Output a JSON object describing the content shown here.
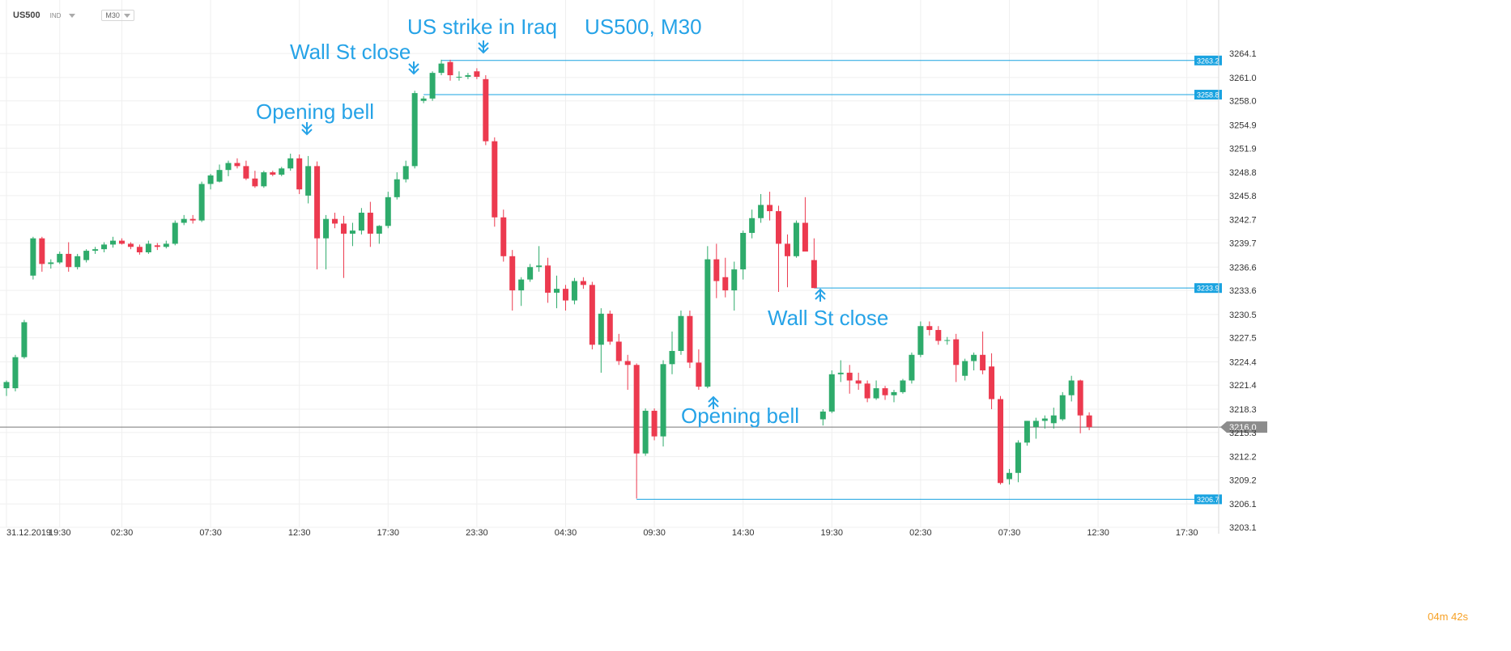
{
  "toolbar": {
    "symbol": "US500",
    "exchange": "IND",
    "timeframe": "M30"
  },
  "timer": {
    "minutes": "04",
    "minute_unit": "m",
    "seconds": "42",
    "second_unit": "s"
  },
  "colors": {
    "up": "#2eab6b",
    "down": "#ec3a4f",
    "level": "#1aa3e0",
    "annotation": "#26a3e7",
    "grid": "#efefef",
    "current": "#777777"
  },
  "chart_data": {
    "type": "candlestick",
    "title": "US500, M30",
    "symbol": "US500",
    "timeframe": "M30",
    "ylim": [
      3203.1,
      3266.3
    ],
    "y_ticks": [
      "3264.1",
      "3261.0",
      "3258.0",
      "3254.9",
      "3251.9",
      "3248.8",
      "3245.8",
      "3242.7",
      "3239.7",
      "3236.6",
      "3233.6",
      "3230.5",
      "3227.5",
      "3224.4",
      "3221.4",
      "3218.3",
      "3215.3",
      "3212.2",
      "3209.2",
      "3206.1",
      "3203.1"
    ],
    "x_ticks": [
      {
        "label": "31.12.2019",
        "i": 0
      },
      {
        "label": "19:30",
        "i": 6
      },
      {
        "label": "02:30",
        "i": 13
      },
      {
        "label": "07:30",
        "i": 23
      },
      {
        "label": "12:30",
        "i": 33
      },
      {
        "label": "17:30",
        "i": 43
      },
      {
        "label": "23:30",
        "i": 53
      },
      {
        "label": "04:30",
        "i": 63
      },
      {
        "label": "09:30",
        "i": 73
      },
      {
        "label": "14:30",
        "i": 83
      },
      {
        "label": "19:30",
        "i": 93
      },
      {
        "label": "02:30",
        "i": 103
      },
      {
        "label": "07:30",
        "i": 113
      },
      {
        "label": "12:30",
        "i": 123
      },
      {
        "label": "17:30",
        "i": 133
      }
    ],
    "candles": [
      [
        3221.0,
        3222.0,
        3220.0,
        3221.8
      ],
      [
        3221.0,
        3225.3,
        3220.6,
        3225.0
      ],
      [
        3225.0,
        3229.8,
        3224.8,
        3229.5
      ],
      [
        3235.5,
        3240.5,
        3235.0,
        3240.3
      ],
      [
        3240.3,
        3240.5,
        3236.0,
        3237.0
      ],
      [
        3237.0,
        3237.6,
        3236.4,
        3237.2
      ],
      [
        3237.2,
        3238.6,
        3237.0,
        3238.3
      ],
      [
        3238.3,
        3239.8,
        3236.0,
        3236.6
      ],
      [
        3236.6,
        3238.3,
        3236.3,
        3238.0
      ],
      [
        3237.5,
        3238.9,
        3237.2,
        3238.7
      ],
      [
        3238.7,
        3239.2,
        3238.3,
        3238.9
      ],
      [
        3238.9,
        3239.8,
        3238.5,
        3239.5
      ],
      [
        3239.5,
        3240.5,
        3239.1,
        3240.0
      ],
      [
        3240.0,
        3240.3,
        3239.5,
        3239.6
      ],
      [
        3239.6,
        3239.8,
        3238.9,
        3239.2
      ],
      [
        3239.2,
        3239.5,
        3238.2,
        3238.5
      ],
      [
        3238.5,
        3240.0,
        3238.3,
        3239.6
      ],
      [
        3239.4,
        3239.7,
        3238.8,
        3239.2
      ],
      [
        3239.2,
        3240.0,
        3239.0,
        3239.6
      ],
      [
        3239.6,
        3242.6,
        3239.4,
        3242.3
      ],
      [
        3242.3,
        3243.3,
        3242.0,
        3242.8
      ],
      [
        3242.8,
        3243.3,
        3242.2,
        3242.6
      ],
      [
        3242.6,
        3247.6,
        3242.4,
        3247.3
      ],
      [
        3247.3,
        3248.6,
        3246.6,
        3248.4
      ],
      [
        3247.6,
        3249.8,
        3247.5,
        3249.1
      ],
      [
        3249.1,
        3250.3,
        3248.3,
        3250.0
      ],
      [
        3250.0,
        3250.6,
        3249.3,
        3249.6
      ],
      [
        3249.6,
        3250.3,
        3247.8,
        3248.0
      ],
      [
        3248.0,
        3249.0,
        3246.8,
        3247.0
      ],
      [
        3247.0,
        3249.0,
        3246.8,
        3248.8
      ],
      [
        3248.8,
        3249.0,
        3248.3,
        3248.5
      ],
      [
        3248.5,
        3249.5,
        3248.3,
        3249.3
      ],
      [
        3249.3,
        3251.2,
        3249.0,
        3250.6
      ],
      [
        3250.6,
        3251.1,
        3246.0,
        3246.6
      ],
      [
        3245.8,
        3250.9,
        3244.8,
        3249.6
      ],
      [
        3249.6,
        3250.2,
        3236.3,
        3240.3
      ],
      [
        3240.3,
        3243.3,
        3236.3,
        3242.8
      ],
      [
        3242.8,
        3243.6,
        3241.6,
        3242.2
      ],
      [
        3242.2,
        3243.2,
        3235.2,
        3240.9
      ],
      [
        3240.9,
        3242.3,
        3239.3,
        3241.3
      ],
      [
        3241.3,
        3244.2,
        3240.8,
        3243.6
      ],
      [
        3243.6,
        3245.0,
        3239.2,
        3240.9
      ],
      [
        3240.9,
        3242.0,
        3239.6,
        3241.9
      ],
      [
        3241.9,
        3246.3,
        3241.6,
        3245.6
      ],
      [
        3245.6,
        3248.8,
        3245.3,
        3247.9
      ],
      [
        3247.9,
        3250.3,
        3247.5,
        3249.6
      ],
      [
        3249.6,
        3259.3,
        3249.3,
        3259.0
      ],
      [
        3258.0,
        3258.6,
        3257.7,
        3258.3
      ],
      [
        3258.3,
        3261.8,
        3258.0,
        3261.6
      ],
      [
        3261.6,
        3263.3,
        3261.3,
        3262.8
      ],
      [
        3263.0,
        3263.3,
        3260.6,
        3261.3
      ],
      [
        3261.1,
        3261.8,
        3260.6,
        3261.1
      ],
      [
        3261.1,
        3261.6,
        3260.8,
        3261.3
      ],
      [
        3261.8,
        3262.2,
        3260.8,
        3261.1
      ],
      [
        3260.8,
        3261.3,
        3252.3,
        3252.8
      ],
      [
        3252.8,
        3253.3,
        3241.8,
        3243.0
      ],
      [
        3243.0,
        3244.0,
        3237.3,
        3238.0
      ],
      [
        3238.0,
        3238.8,
        3231.0,
        3233.6
      ],
      [
        3233.6,
        3235.3,
        3231.6,
        3235.0
      ],
      [
        3235.0,
        3237.0,
        3234.7,
        3236.6
      ],
      [
        3236.6,
        3239.3,
        3236.0,
        3236.8
      ],
      [
        3236.8,
        3237.8,
        3232.0,
        3233.3
      ],
      [
        3233.3,
        3235.5,
        3231.3,
        3233.8
      ],
      [
        3233.8,
        3234.3,
        3231.0,
        3232.3
      ],
      [
        3232.3,
        3235.2,
        3231.8,
        3234.8
      ],
      [
        3234.8,
        3235.3,
        3233.8,
        3234.3
      ],
      [
        3234.3,
        3234.7,
        3226.0,
        3226.6
      ],
      [
        3226.6,
        3231.3,
        3223.0,
        3230.6
      ],
      [
        3230.6,
        3231.0,
        3226.6,
        3227.0
      ],
      [
        3227.0,
        3228.0,
        3224.0,
        3224.5
      ],
      [
        3224.5,
        3225.3,
        3220.8,
        3224.0
      ],
      [
        3224.0,
        3224.2,
        3206.8,
        3212.6
      ],
      [
        3212.6,
        3218.4,
        3212.3,
        3218.1
      ],
      [
        3218.1,
        3218.4,
        3214.3,
        3214.8
      ],
      [
        3214.8,
        3224.6,
        3213.5,
        3224.1
      ],
      [
        3224.1,
        3228.3,
        3222.8,
        3225.8
      ],
      [
        3225.8,
        3231.0,
        3225.3,
        3230.3
      ],
      [
        3230.3,
        3231.0,
        3223.6,
        3224.3
      ],
      [
        3224.3,
        3226.0,
        3220.8,
        3221.2
      ],
      [
        3221.2,
        3239.3,
        3221.0,
        3237.6
      ],
      [
        3237.6,
        3239.6,
        3232.6,
        3234.8
      ],
      [
        3235.3,
        3237.8,
        3232.7,
        3233.6
      ],
      [
        3233.6,
        3237.3,
        3231.0,
        3236.3
      ],
      [
        3236.3,
        3241.3,
        3235.0,
        3241.0
      ],
      [
        3241.0,
        3244.0,
        3240.3,
        3242.9
      ],
      [
        3242.9,
        3246.0,
        3242.3,
        3244.6
      ],
      [
        3244.6,
        3246.3,
        3242.6,
        3243.8
      ],
      [
        3243.8,
        3244.5,
        3233.4,
        3239.6
      ],
      [
        3239.6,
        3240.8,
        3234.0,
        3238.0
      ],
      [
        3238.0,
        3242.6,
        3237.8,
        3242.3
      ],
      [
        3242.3,
        3245.6,
        3238.8,
        3238.6
      ],
      [
        3237.5,
        3240.3,
        3233.9,
        3233.9
      ],
      [
        3217.0,
        3218.3,
        3216.2,
        3218.0
      ],
      [
        3218.0,
        3223.3,
        3217.8,
        3222.8
      ],
      [
        3222.8,
        3224.6,
        3221.8,
        3223.0
      ],
      [
        3223.0,
        3224.0,
        3220.3,
        3222.0
      ],
      [
        3222.0,
        3223.0,
        3220.8,
        3221.6
      ],
      [
        3221.6,
        3222.0,
        3219.2,
        3219.7
      ],
      [
        3219.7,
        3222.0,
        3219.5,
        3221.0
      ],
      [
        3221.0,
        3221.3,
        3219.5,
        3220.1
      ],
      [
        3220.1,
        3220.8,
        3219.2,
        3220.5
      ],
      [
        3220.5,
        3222.2,
        3220.3,
        3222.0
      ],
      [
        3222.0,
        3225.6,
        3221.6,
        3225.3
      ],
      [
        3225.3,
        3229.6,
        3225.0,
        3229.0
      ],
      [
        3229.0,
        3229.6,
        3227.8,
        3228.5
      ],
      [
        3228.5,
        3229.0,
        3226.6,
        3227.1
      ],
      [
        3227.1,
        3227.6,
        3226.6,
        3227.2
      ],
      [
        3227.3,
        3228.0,
        3221.8,
        3224.0
      ],
      [
        3222.6,
        3224.8,
        3222.0,
        3224.5
      ],
      [
        3224.5,
        3225.6,
        3223.3,
        3225.3
      ],
      [
        3225.3,
        3228.3,
        3222.8,
        3223.3
      ],
      [
        3223.8,
        3225.5,
        3218.3,
        3219.6
      ],
      [
        3219.6,
        3220.0,
        3208.6,
        3208.8
      ],
      [
        3209.3,
        3210.6,
        3208.6,
        3210.1
      ],
      [
        3210.1,
        3214.3,
        3208.9,
        3214.0
      ],
      [
        3214.0,
        3216.8,
        3213.6,
        3216.8
      ],
      [
        3216.0,
        3217.2,
        3214.5,
        3216.8
      ],
      [
        3216.8,
        3217.5,
        3215.8,
        3217.1
      ],
      [
        3216.5,
        3218.5,
        3215.8,
        3217.5
      ],
      [
        3217.0,
        3220.5,
        3216.8,
        3220.1
      ],
      [
        3220.1,
        3222.6,
        3219.3,
        3222.0
      ],
      [
        3222.0,
        3222.1,
        3215.2,
        3217.5
      ],
      [
        3217.5,
        3217.9,
        3215.6,
        3216.0
      ]
    ],
    "levels": [
      {
        "value": 3263.2,
        "label": "3263.2",
        "from": 49
      },
      {
        "value": 3258.8,
        "label": "3258.8",
        "from": 47
      },
      {
        "value": 3233.9,
        "label": "3233.9",
        "from": 91
      },
      {
        "value": 3206.7,
        "label": "3206.7",
        "from": 71
      }
    ],
    "current_price": {
      "value": 3216.0,
      "label": "3216.0"
    },
    "annotations": [
      {
        "text": "Opening bell",
        "tx": 316,
        "ty": 138,
        "arrow": "down",
        "ax": 379,
        "ay": 165
      },
      {
        "text": "Wall St close",
        "tx": 358,
        "ty": 64,
        "arrow": "down",
        "ax": 511,
        "ay": 90
      },
      {
        "text": "US strike in Iraq",
        "tx": 503,
        "ty": 33,
        "arrow": "down",
        "ax": 597,
        "ay": 64
      },
      {
        "text": "US500, M30",
        "tx": 722,
        "ty": 33,
        "arrow": "none",
        "ax": 0,
        "ay": 0
      },
      {
        "text": "Wall St close",
        "tx": 948,
        "ty": 393,
        "arrow": "up",
        "ax": 1013,
        "ay": 359
      },
      {
        "text": "Opening bell",
        "tx": 841,
        "ty": 514,
        "arrow": "up",
        "ax": 881,
        "ay": 492
      }
    ]
  }
}
